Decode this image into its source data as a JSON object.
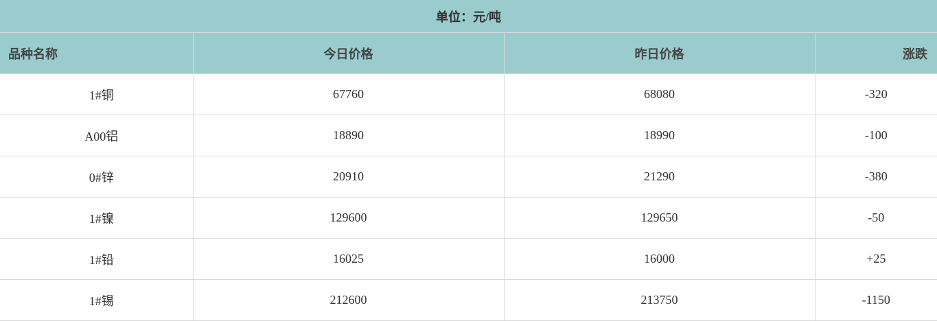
{
  "unit_label": "单位：元/吨",
  "columns": [
    "品种名称",
    "今日价格",
    "昨日价格",
    "涨跌"
  ],
  "rows": [
    {
      "name": "1#铜",
      "today": "67760",
      "yesterday": "68080",
      "change": "-320"
    },
    {
      "name": "A00铝",
      "today": "18890",
      "yesterday": "18990",
      "change": "-100"
    },
    {
      "name": "0#锌",
      "today": "20910",
      "yesterday": "21290",
      "change": "-380"
    },
    {
      "name": "1#镍",
      "today": "129600",
      "yesterday": "129650",
      "change": "-50"
    },
    {
      "name": "1#铅",
      "today": "16025",
      "yesterday": "16000",
      "change": "+25"
    },
    {
      "name": "1#锡",
      "today": "212600",
      "yesterday": "213750",
      "change": "-1150"
    }
  ],
  "colors": {
    "header_bg": "#9acccd",
    "border": "#d9d9d9"
  }
}
